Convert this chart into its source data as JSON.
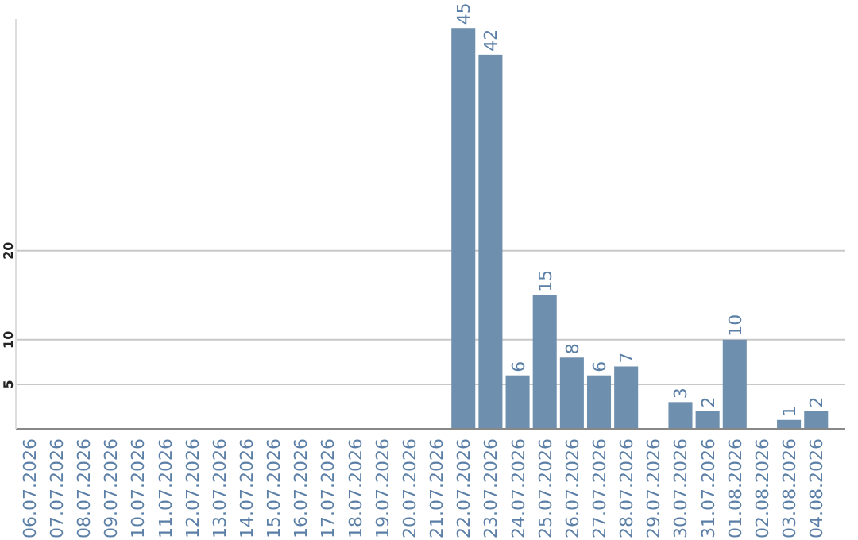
{
  "chart_data": {
    "type": "bar",
    "categories": [
      "06.07.2026",
      "07.07.2026",
      "08.07.2026",
      "09.07.2026",
      "10.07.2026",
      "11.07.2026",
      "12.07.2026",
      "13.07.2026",
      "14.07.2026",
      "15.07.2026",
      "16.07.2026",
      "17.07.2026",
      "18.07.2026",
      "19.07.2026",
      "20.07.2026",
      "21.07.2026",
      "22.07.2026",
      "23.07.2026",
      "24.07.2026",
      "25.07.2026",
      "26.07.2026",
      "27.07.2026",
      "28.07.2026",
      "29.07.2026",
      "30.07.2026",
      "31.07.2026",
      "01.08.2026",
      "02.08.2026",
      "03.08.2026",
      "04.08.2026"
    ],
    "values": [
      0,
      0,
      0,
      0,
      0,
      0,
      0,
      0,
      0,
      0,
      0,
      0,
      0,
      0,
      0,
      0,
      45,
      42,
      6,
      15,
      8,
      6,
      7,
      0,
      3,
      2,
      10,
      0,
      1,
      2
    ],
    "value_labels": [
      null,
      null,
      null,
      null,
      null,
      null,
      null,
      null,
      null,
      null,
      null,
      null,
      null,
      null,
      null,
      null,
      "45",
      "42",
      "6",
      "15",
      "8",
      "6",
      "7",
      null,
      "3",
      "2",
      "10",
      null,
      "1",
      "2"
    ],
    "color": "#6e8fad",
    "ylim": [
      0,
      46
    ],
    "yticks": [
      5,
      10,
      20
    ],
    "grid": "y"
  }
}
